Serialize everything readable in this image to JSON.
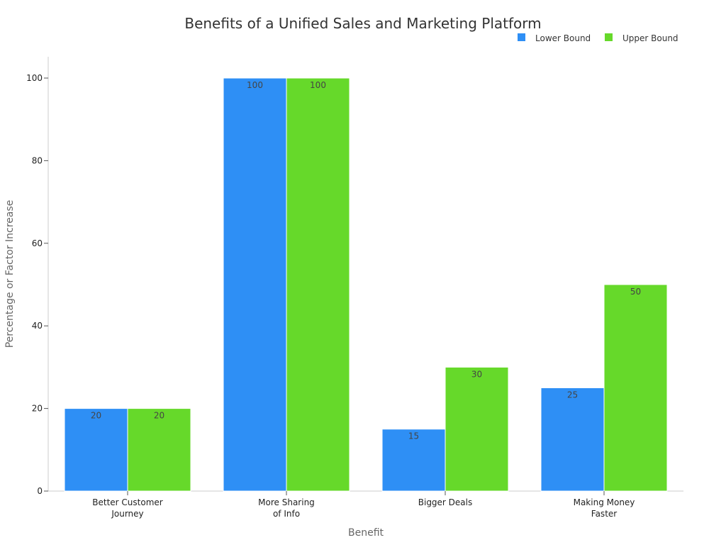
{
  "chart_data": {
    "type": "bar",
    "title": "Benefits of a Unified Sales and Marketing Platform",
    "xlabel": "Benefit",
    "ylabel": "Percentage or Factor Increase",
    "categories": [
      [
        "Better Customer",
        "Journey"
      ],
      [
        "More Sharing",
        "of Info"
      ],
      [
        "Bigger Deals"
      ],
      [
        "Making Money",
        "Faster"
      ]
    ],
    "series": [
      {
        "name": "Lower Bound",
        "color": "#2e8ff5",
        "values": [
          20,
          100,
          15,
          25
        ]
      },
      {
        "name": "Upper Bound",
        "color": "#66d92a",
        "values": [
          20,
          100,
          30,
          50
        ]
      }
    ],
    "ylim": [
      0,
      105
    ],
    "yticks": [
      0,
      20,
      40,
      60,
      80,
      100
    ],
    "legend_position": "top-right",
    "grid": false
  }
}
